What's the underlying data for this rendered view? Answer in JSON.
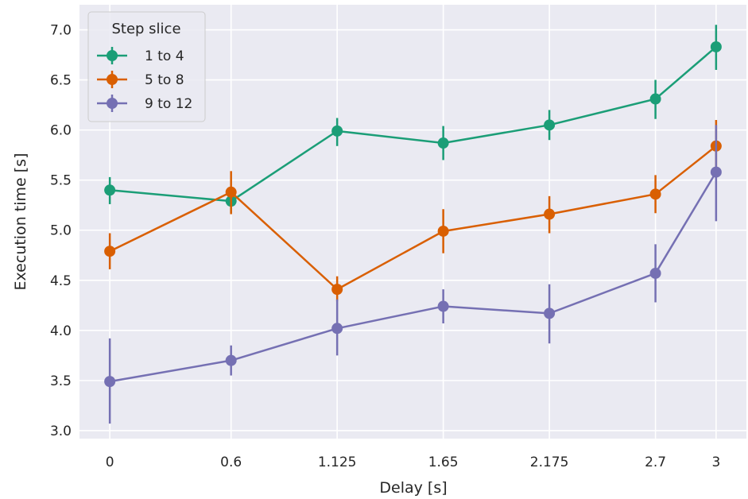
{
  "chart_data": {
    "type": "line",
    "xlabel": "Delay [s]",
    "ylabel": "Execution time [s]",
    "x": [
      0,
      0.6,
      1.125,
      1.65,
      2.175,
      2.7,
      3
    ],
    "x_tick_labels": [
      "0",
      "0.6",
      "1.125",
      "1.65",
      "2.175",
      "2.7",
      "3"
    ],
    "xlim": [
      -0.15,
      3.15
    ],
    "ylim": [
      2.92,
      7.25
    ],
    "y_ticks": [
      3.0,
      3.5,
      4.0,
      4.5,
      5.0,
      5.5,
      6.0,
      6.5,
      7.0
    ],
    "y_tick_labels": [
      "3.0",
      "3.5",
      "4.0",
      "4.5",
      "5.0",
      "5.5",
      "6.0",
      "6.5",
      "7.0"
    ],
    "grid": true,
    "background": "#eaeaf2",
    "legend": {
      "title": "Step slice",
      "placement": "top-left"
    },
    "series": [
      {
        "name": "1 to 4",
        "color": "#1b9e77",
        "values": [
          5.4,
          5.29,
          5.99,
          5.87,
          6.05,
          6.31,
          6.83
        ],
        "err_low": [
          5.26,
          5.17,
          5.84,
          5.7,
          5.9,
          6.11,
          6.6
        ],
        "err_high": [
          5.53,
          5.41,
          6.12,
          6.04,
          6.2,
          6.5,
          7.05
        ]
      },
      {
        "name": "5 to 8",
        "color": "#d95f02",
        "values": [
          4.79,
          5.38,
          4.41,
          4.99,
          5.16,
          5.36,
          5.84
        ],
        "err_low": [
          4.61,
          5.16,
          4.29,
          4.77,
          4.97,
          5.17,
          5.57
        ],
        "err_high": [
          4.97,
          5.59,
          4.54,
          5.21,
          5.34,
          5.55,
          6.1
        ]
      },
      {
        "name": "9 to 12",
        "color": "#7570b3",
        "values": [
          3.49,
          3.7,
          4.02,
          4.24,
          4.17,
          4.57,
          5.58
        ],
        "err_low": [
          3.07,
          3.55,
          3.75,
          4.07,
          3.87,
          4.28,
          5.09
        ],
        "err_high": [
          3.92,
          3.85,
          4.31,
          4.41,
          4.46,
          4.86,
          6.05
        ]
      }
    ]
  }
}
